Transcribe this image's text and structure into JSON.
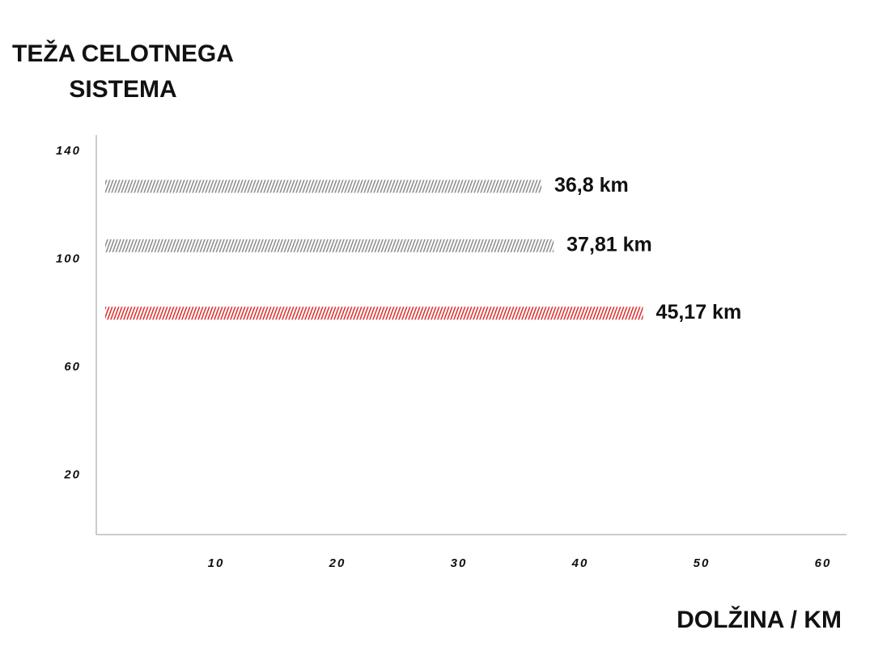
{
  "chart_data": {
    "type": "bar",
    "orientation": "horizontal",
    "ylabel": [
      "TEŽA CELOTNEGA",
      "SISTEMA"
    ],
    "xlabel": "DOLŽINA / KM",
    "values": [
      36.8,
      37.81,
      45.17
    ],
    "value_labels": [
      "36,8 km",
      "37,81 km",
      "45,17 km"
    ],
    "weights": [
      127,
      105,
      80
    ],
    "colors": [
      "#8a8a8a",
      "#8a8a8a",
      "#e02a2a"
    ],
    "xlim": [
      0,
      62
    ],
    "xticks": [
      10,
      20,
      30,
      40,
      50,
      60
    ],
    "ylim": [
      -2,
      146
    ],
    "yticks": [
      20,
      60,
      100,
      140
    ],
    "hatch": true
  }
}
